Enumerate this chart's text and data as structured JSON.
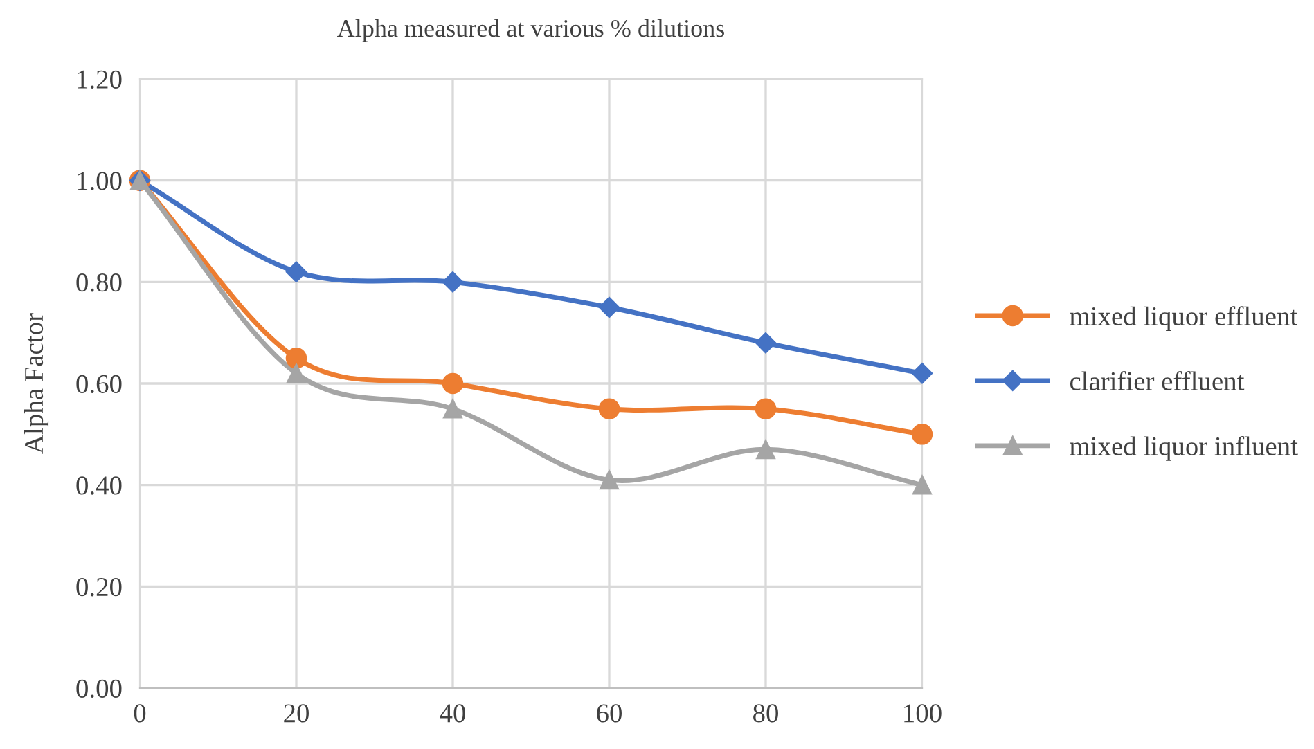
{
  "chart_data": {
    "type": "line",
    "title": "Alpha measured at various % dilutions",
    "ylabel": "Alpha Factor",
    "x": [
      0,
      20,
      40,
      60,
      80,
      100
    ],
    "series": [
      {
        "name": "mixed liquor effluent",
        "color": "#ed7d31",
        "marker": "circle",
        "values": [
          1.0,
          0.65,
          0.6,
          0.55,
          0.55,
          0.5
        ]
      },
      {
        "name": "clarifier effluent",
        "color": "#4472c4",
        "marker": "diamond",
        "values": [
          1.0,
          0.82,
          0.8,
          0.75,
          0.68,
          0.62
        ]
      },
      {
        "name": "mixed liquor influent",
        "color": "#a5a5a5",
        "marker": "triangle",
        "values": [
          1.0,
          0.62,
          0.55,
          0.41,
          0.47,
          0.4
        ]
      }
    ],
    "xlim": [
      0,
      100
    ],
    "xticks": [
      0,
      20,
      40,
      60,
      80,
      100
    ],
    "ylim": [
      0,
      1.2
    ],
    "yticks": [
      {
        "value": 0,
        "label": "0.00"
      },
      {
        "value": 0.2,
        "label": "0.20"
      },
      {
        "value": 0.4,
        "label": "0.40"
      },
      {
        "value": 0.6,
        "label": "0.60"
      },
      {
        "value": 0.8,
        "label": "0.80"
      },
      {
        "value": 1.0,
        "label": "1.00"
      },
      {
        "value": 1.2,
        "label": "1.20"
      }
    ],
    "grid": true,
    "legend": "right",
    "line_style": "solid"
  }
}
